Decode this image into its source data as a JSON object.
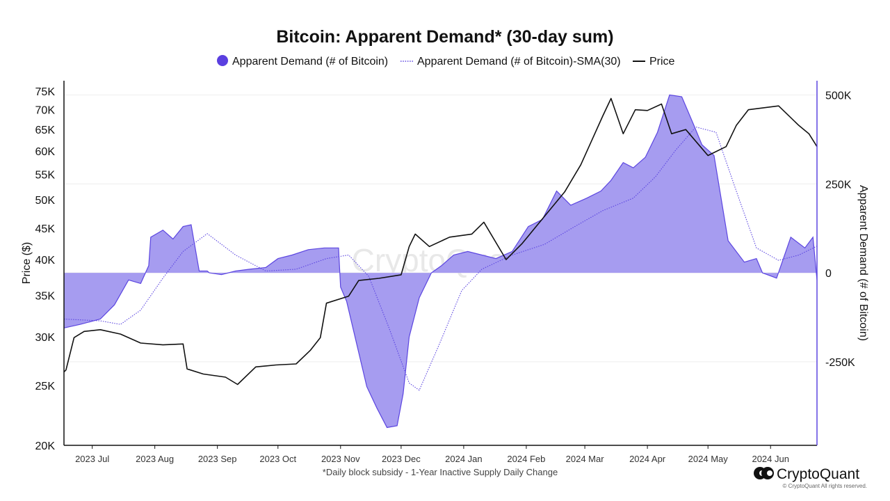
{
  "chart_data": {
    "type": "area",
    "title": "Bitcoin: Apparent Demand* (30-day sum)",
    "footnote": "*Daily block subsidy - 1-Year Inactive Supply Daily Change",
    "watermark": "CryptoQuant",
    "brand": "CryptoQuant",
    "copyright": "© CryptoQuant All rights reserved.",
    "legend": {
      "placement": "top-center",
      "items": [
        "Apparent Demand (# of Bitcoin)",
        "Apparent Demand (# of Bitcoin)-SMA(30)",
        "Price"
      ]
    },
    "left_axis": {
      "label": "Price ($)",
      "scale": "log",
      "range": [
        20000,
        78000
      ],
      "ticks": [
        20000,
        25000,
        30000,
        35000,
        40000,
        45000,
        50000,
        55000,
        60000,
        65000,
        70000,
        75000
      ],
      "tick_labels": [
        "20K",
        "25K",
        "30K",
        "35K",
        "40K",
        "45K",
        "50K",
        "55K",
        "60K",
        "65K",
        "70K",
        "75K"
      ]
    },
    "right_axis": {
      "label": "Apparent Demand (# of Bitcoin)",
      "scale": "linear",
      "range": [
        -485000,
        540000
      ],
      "ticks": [
        500000,
        250000,
        0,
        -250000
      ],
      "tick_labels": [
        "500K",
        "250K",
        "0",
        "-250K"
      ]
    },
    "x_axis": {
      "type": "date",
      "range": [
        "2023-06-17",
        "2024-06-24"
      ],
      "ticks": [
        "2023-07-01",
        "2023-08-01",
        "2023-09-01",
        "2023-10-01",
        "2023-11-01",
        "2023-12-01",
        "2024-01-01",
        "2024-02-01",
        "2024-03-01",
        "2024-04-01",
        "2024-05-01",
        "2024-06-01"
      ],
      "tick_labels": [
        "2023 Jul",
        "2023 Aug",
        "2023 Sep",
        "2023 Oct",
        "2023 Nov",
        "2023 Dec",
        "2024 Jan",
        "2024 Feb",
        "2024 Mar",
        "2024 Apr",
        "2024 May",
        "2024 Jun"
      ]
    },
    "grid": "horizontal",
    "colors": {
      "demand_fill": "#a69cf0",
      "demand_line": "#5b45e0",
      "legend_dot": "#5a3fe0",
      "sma": "#5b45e0",
      "price": "#111111",
      "gridline": "#eeeeee"
    },
    "series": [
      {
        "name": "Apparent Demand (# of Bitcoin)",
        "axis": "right",
        "style": "area",
        "x": [
          "2023-06-17",
          "2023-06-25",
          "2023-07-05",
          "2023-07-12",
          "2023-07-19",
          "2023-07-25",
          "2023-07-29",
          "2023-07-30",
          "2023-08-05",
          "2023-08-10",
          "2023-08-15",
          "2023-08-19",
          "2023-08-23",
          "2023-08-27",
          "2023-08-28",
          "2023-09-03",
          "2023-09-10",
          "2023-09-17",
          "2023-09-25",
          "2023-10-01",
          "2023-10-08",
          "2023-10-16",
          "2023-10-24",
          "2023-10-31",
          "2023-11-01",
          "2023-11-04",
          "2023-11-09",
          "2023-11-14",
          "2023-11-19",
          "2023-11-24",
          "2023-11-29",
          "2023-12-02",
          "2023-12-05",
          "2023-12-10",
          "2023-12-16",
          "2023-12-21",
          "2023-12-27",
          "2024-01-03",
          "2024-01-10",
          "2024-01-17",
          "2024-01-25",
          "2024-02-02",
          "2024-02-09",
          "2024-02-16",
          "2024-02-23",
          "2024-03-02",
          "2024-03-09",
          "2024-03-14",
          "2024-03-20",
          "2024-03-25",
          "2024-03-31",
          "2024-04-06",
          "2024-04-12",
          "2024-04-18",
          "2024-04-24",
          "2024-04-28",
          "2024-05-04",
          "2024-05-11",
          "2024-05-19",
          "2024-05-25",
          "2024-05-28",
          "2024-06-04",
          "2024-06-11",
          "2024-06-18",
          "2024-06-22",
          "2024-06-24"
        ],
        "values": [
          -155000,
          -145000,
          -130000,
          -90000,
          -20000,
          -30000,
          20000,
          100000,
          120000,
          95000,
          130000,
          135000,
          5000,
          5000,
          0,
          -5000,
          5000,
          10000,
          15000,
          40000,
          50000,
          65000,
          70000,
          70000,
          -40000,
          -80000,
          -200000,
          -320000,
          -380000,
          -435000,
          -430000,
          -340000,
          -180000,
          -70000,
          0,
          20000,
          50000,
          60000,
          50000,
          40000,
          60000,
          130000,
          150000,
          230000,
          190000,
          210000,
          230000,
          260000,
          310000,
          295000,
          325000,
          395000,
          500000,
          495000,
          415000,
          360000,
          330000,
          90000,
          30000,
          40000,
          0,
          -15000,
          100000,
          70000,
          100000,
          -20000
        ]
      },
      {
        "name": "Apparent Demand (# of Bitcoin)-SMA(30)",
        "axis": "right",
        "style": "dotted-line",
        "x": [
          "2023-06-17",
          "2023-07-05",
          "2023-07-15",
          "2023-07-25",
          "2023-08-05",
          "2023-08-15",
          "2023-08-27",
          "2023-09-10",
          "2023-09-25",
          "2023-10-10",
          "2023-10-25",
          "2023-11-05",
          "2023-11-15",
          "2023-11-25",
          "2023-12-05",
          "2023-12-10",
          "2023-12-20",
          "2023-12-31",
          "2024-01-10",
          "2024-01-25",
          "2024-02-10",
          "2024-02-25",
          "2024-03-10",
          "2024-03-25",
          "2024-04-05",
          "2024-04-15",
          "2024-04-25",
          "2024-05-05",
          "2024-05-15",
          "2024-05-25",
          "2024-06-05",
          "2024-06-15",
          "2024-06-24"
        ],
        "values": [
          -130000,
          -135000,
          -145000,
          -105000,
          -15000,
          60000,
          110000,
          50000,
          5000,
          10000,
          40000,
          50000,
          -10000,
          -155000,
          -310000,
          -330000,
          -200000,
          -50000,
          10000,
          50000,
          80000,
          130000,
          175000,
          210000,
          270000,
          345000,
          410000,
          395000,
          230000,
          70000,
          35000,
          50000,
          75000
        ]
      },
      {
        "name": "Price",
        "axis": "left",
        "style": "line",
        "x": [
          "2023-06-17",
          "2023-06-18",
          "2023-06-22",
          "2023-06-27",
          "2023-07-05",
          "2023-07-15",
          "2023-07-25",
          "2023-08-05",
          "2023-08-15",
          "2023-08-17",
          "2023-08-25",
          "2023-09-05",
          "2023-09-11",
          "2023-09-20",
          "2023-09-30",
          "2023-10-10",
          "2023-10-17",
          "2023-10-22",
          "2023-10-25",
          "2023-11-05",
          "2023-11-10",
          "2023-11-20",
          "2023-12-01",
          "2023-12-05",
          "2023-12-08",
          "2023-12-15",
          "2023-12-25",
          "2024-01-05",
          "2024-01-11",
          "2024-01-22",
          "2024-01-30",
          "2024-02-10",
          "2024-02-20",
          "2024-02-28",
          "2024-03-05",
          "2024-03-10",
          "2024-03-14",
          "2024-03-20",
          "2024-03-26",
          "2024-04-01",
          "2024-04-08",
          "2024-04-13",
          "2024-04-20",
          "2024-05-01",
          "2024-05-10",
          "2024-05-15",
          "2024-05-21",
          "2024-06-05",
          "2024-06-15",
          "2024-06-20",
          "2024-06-24"
        ],
        "values": [
          26300,
          26500,
          29900,
          30600,
          30800,
          30300,
          29300,
          29100,
          29200,
          26600,
          26100,
          25800,
          25100,
          26800,
          27000,
          27100,
          28500,
          29900,
          34000,
          34900,
          37000,
          37300,
          37800,
          42000,
          44000,
          42000,
          43500,
          44000,
          46000,
          40000,
          42500,
          47000,
          51500,
          57000,
          63000,
          68500,
          73000,
          64000,
          70000,
          69800,
          71500,
          64000,
          65000,
          59000,
          61000,
          66000,
          70000,
          71000,
          66000,
          64000,
          61000
        ]
      }
    ]
  }
}
